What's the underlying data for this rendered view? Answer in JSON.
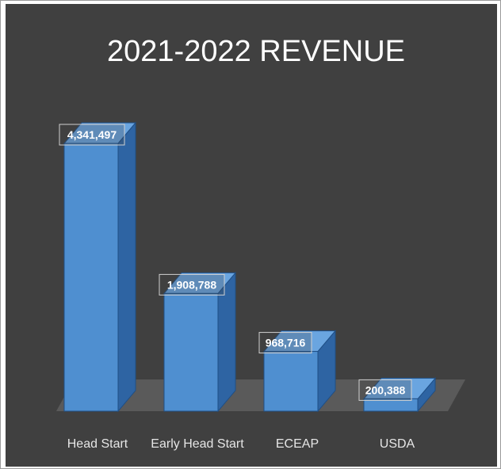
{
  "chart_data": {
    "type": "bar",
    "title": "2021-2022 REVENUE",
    "categories": [
      "Head Start",
      "Early Head Start",
      "ECEAP",
      "USDA"
    ],
    "values": [
      4341497,
      1908788,
      968716,
      200388
    ],
    "data_labels": [
      "4,341,497",
      "1,908,788",
      "968,716",
      "200,388"
    ],
    "xlabel": "",
    "ylabel": "",
    "ylim": [
      0,
      4341497
    ],
    "grid": false,
    "legend": "none",
    "style": "3d-column",
    "colors": {
      "background": "#404040",
      "bar_front": "#4f8fd0",
      "bar_side": "#2e64a3",
      "bar_top": "#6aa5e0",
      "floor": "#5a5a5a",
      "text": "#ffffff"
    }
  }
}
